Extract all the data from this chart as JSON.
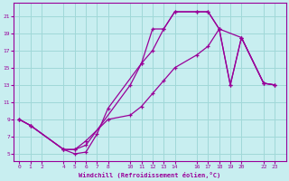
{
  "xlabel": "Windchill (Refroidissement éolien,°C)",
  "bg_color": "#c8eef0",
  "grid_color": "#a0d8d8",
  "line_color": "#990099",
  "xlim": [
    -0.5,
    24
  ],
  "ylim": [
    4.2,
    22.5
  ],
  "xticks": [
    0,
    1,
    2,
    4,
    5,
    6,
    7,
    8,
    10,
    11,
    12,
    13,
    14,
    16,
    17,
    18,
    19,
    20,
    22,
    23
  ],
  "yticks": [
    5,
    7,
    9,
    11,
    13,
    15,
    17,
    19,
    21
  ],
  "curve1_x": [
    0,
    1,
    4,
    5,
    6,
    7,
    8,
    11,
    12,
    13,
    14,
    16,
    17,
    18,
    19,
    20,
    22,
    23
  ],
  "curve1_y": [
    9,
    8.3,
    5.5,
    5.0,
    5.2,
    7.3,
    10.3,
    15.5,
    19.5,
    19.5,
    21.5,
    21.5,
    21.5,
    19.5,
    13.0,
    18.5,
    13.2,
    13.0
  ],
  "curve2_x": [
    0,
    1,
    4,
    5,
    6,
    10,
    11,
    12,
    13,
    14,
    16,
    17,
    18,
    20,
    22,
    23
  ],
  "curve2_y": [
    9,
    8.3,
    5.5,
    5.5,
    6.0,
    13.0,
    15.5,
    17.0,
    19.5,
    21.5,
    21.5,
    21.5,
    19.5,
    18.5,
    13.2,
    13.0
  ],
  "curve3_x": [
    0,
    1,
    4,
    5,
    6,
    8,
    10,
    11,
    12,
    13,
    14,
    16,
    17,
    18,
    19,
    20,
    22,
    23
  ],
  "curve3_y": [
    9,
    8.3,
    5.5,
    5.5,
    6.5,
    9.0,
    9.5,
    10.5,
    12.0,
    13.5,
    15.0,
    16.5,
    17.5,
    19.5,
    13.0,
    18.5,
    13.2,
    13.0
  ]
}
